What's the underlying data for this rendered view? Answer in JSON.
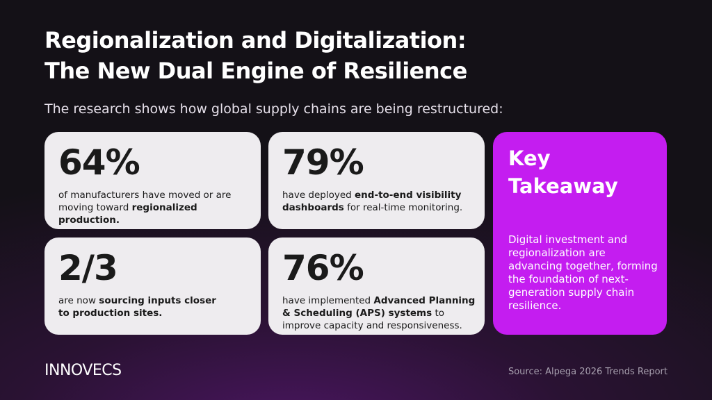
{
  "title": [
    "Regionalization and Digitalization:",
    "The New Dual Engine of Resilience"
  ],
  "subtitle": "The research shows how global supply chains are being restructured:",
  "stats": [
    {
      "value": "64%",
      "text": [
        "of manufacturers have moved or are moving toward ",
        "regionalized production."
      ]
    },
    {
      "value": "79%",
      "text": [
        "have deployed ",
        "end-to-end visibility dashboards",
        " for real-time monitoring."
      ]
    },
    {
      "value": "2/3",
      "text": [
        "are now ",
        "sourcing inputs closer to production sites."
      ]
    },
    {
      "value": "76%",
      "text": [
        "have implemented ",
        "Advanced Planning & Scheduling (APS) systems",
        " to improve capacity and responsiveness."
      ]
    }
  ],
  "takeaway": {
    "title": "Key Takeaway",
    "text": "Digital investment and regionalization are advancing together, forming the foundation of next-generation supply chain resilience."
  },
  "footer": {
    "logo": "INNOVECS",
    "source": "Source: Alpega 2026 Trends Report"
  }
}
